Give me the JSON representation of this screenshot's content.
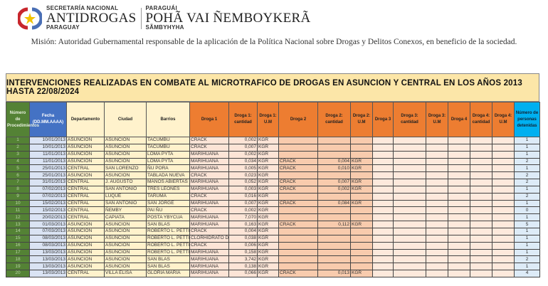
{
  "header": {
    "org_line1": "SECRETARÍA NACIONAL",
    "org_name": "ANTIDROGAS",
    "org_country": "PARAGUAY",
    "gn_line1": "PARAGUÁI",
    "gn_name": "POHÃ VAI ÑEMBOYKERÃ",
    "gn_line3": "SÃMBYHYHA"
  },
  "mision": "Misión: Autoridad Gubernamental responsable de la aplicación de la Política Nacional sobre Drogas y Delitos Conexos, en beneficio de la sociedad.",
  "table": {
    "title": "INTERVENCIONES REALIZADAS EN COMBATE AL MICROTRAFICO DE DROGAS EN ASUNCION Y CENTRAL EN LOS AÑOS 2013 HASTA 22/08/2024",
    "columns": [
      "Número de Procedimientos",
      "Fecha (DD.MM.AAAA)",
      "Departamento",
      "Ciudad",
      "Barrios",
      "Droga 1",
      "Droga 1: cantidad",
      "Droga 1: U.M",
      "Droga 2",
      "Droga 2: cantidad",
      "Droga 2: U.M",
      "Droga 3",
      "Droga 3: cantidad",
      "Droga 3: U.M",
      "Droga 4",
      "Droga 4: cantidad",
      "Droga 4: U.M",
      "Número de personas detenidas"
    ],
    "rows": [
      [
        "1",
        "10/01/2013",
        "ASUNCION",
        "ASUNCION",
        "TACUMBU",
        "CRACK",
        "0,002",
        "KGR",
        "",
        "",
        "",
        "",
        "",
        "",
        "",
        "",
        "",
        "1"
      ],
      [
        "2",
        "10/01/2013",
        "ASUNCION",
        "ASUNCION",
        "TACUMBU",
        "CRACK",
        "0,007",
        "KGR",
        "",
        "",
        "",
        "",
        "",
        "",
        "",
        "",
        "",
        "1"
      ],
      [
        "3",
        "11/01/2013",
        "ASUNCION",
        "ASUNCION",
        "LOMA PYTA",
        "MARIHUANA",
        "0,002",
        "KGR",
        "",
        "",
        "",
        "",
        "",
        "",
        "",
        "",
        "",
        "1"
      ],
      [
        "4",
        "11/01/2013",
        "ASUNCION",
        "ASUNCION",
        "LOMA PYTA",
        "MARIHUANA",
        "0,034",
        "KGR",
        "CRACK",
        "0,004",
        "KGR",
        "",
        "",
        "",
        "",
        "",
        "",
        "2"
      ],
      [
        "5",
        "25/01/2013",
        "CENTRAL",
        "SAN LORENZO",
        "ÑU PORA",
        "MARIHUANA",
        "0,005",
        "KGR",
        "CRACK",
        "0,010",
        "KGR",
        "",
        "",
        "",
        "",
        "",
        "",
        "1"
      ],
      [
        "6",
        "25/01/2013",
        "ASUNCION",
        "ASUNCION",
        "TABLADA NUEVA",
        "CRACK",
        "0,023",
        "KGR",
        "",
        "",
        "",
        "",
        "",
        "",
        "",
        "",
        "",
        "2"
      ],
      [
        "7",
        "31/01/2013",
        "CENTRAL",
        "J. AUGUSTO",
        "MANOS ABIERTAS",
        "MARIHUANA",
        "0,052",
        "KGR",
        "CRACK",
        "0,007",
        "KGR",
        "",
        "",
        "",
        "",
        "",
        "",
        "2"
      ],
      [
        "8",
        "07/02/2013",
        "CENTRAL",
        "SAN ANTONIO",
        "TRES LEONES",
        "MARIHUANA",
        "0,003",
        "KGR",
        "CRACK",
        "0,002",
        "KGR",
        "",
        "",
        "",
        "",
        "",
        "",
        "1"
      ],
      [
        "9",
        "07/02/2013",
        "CENTRAL",
        "LUQUE",
        "TARUMA",
        "CRACK",
        "0,016",
        "KGR",
        "",
        "",
        "",
        "",
        "",
        "",
        "",
        "",
        "",
        "2"
      ],
      [
        "10",
        "15/02/2013",
        "CENTRAL",
        "SAN ANTONIO",
        "SAN JORGE",
        "MARIHUANA",
        "0,007",
        "KGR",
        "CRACK",
        "0,084",
        "KGR",
        "",
        "",
        "",
        "",
        "",
        "",
        "1"
      ],
      [
        "11",
        "15/02/2013",
        "CENTRAL",
        "ÑEMBY",
        "PAI ÑU",
        "CRACK",
        "0,002",
        "KGR",
        "",
        "",
        "",
        "",
        "",
        "",
        "",
        "",
        "",
        "0"
      ],
      [
        "12",
        "20/02/2013",
        "CENTRAL",
        "CAPIATA",
        "POSTA YBYCUA",
        "MARIHUANA",
        "7,070",
        "KGR",
        "",
        "",
        "",
        "",
        "",
        "",
        "",
        "",
        "",
        "1"
      ],
      [
        "13",
        "01/03/2013",
        "ASUNCION",
        "ASUNCION",
        "SAN BLAS",
        "MARIHUANA",
        "0,163",
        "KGR",
        "CRACK",
        "0,112",
        "KGR",
        "",
        "",
        "",
        "",
        "",
        "",
        "5"
      ],
      [
        "14",
        "07/03/2013",
        "ASUNCION",
        "ASUNCION",
        "ROBERTO L. PETTIT",
        "CRACK",
        "0,004",
        "KGR",
        "",
        "",
        "",
        "",
        "",
        "",
        "",
        "",
        "",
        "1"
      ],
      [
        "15",
        "08/03/2013",
        "ASUNCION",
        "ASUNCION",
        "ROBERTO L. PETTIT",
        "CLORHIDRATO DE",
        "0,038",
        "KGR",
        "",
        "",
        "",
        "",
        "",
        "",
        "",
        "",
        "",
        "1"
      ],
      [
        "16",
        "08/03/2013",
        "ASUNCION",
        "ASUNCION",
        "ROBERTO L. PETTIT",
        "CRACK",
        "0,006",
        "KGR",
        "",
        "",
        "",
        "",
        "",
        "",
        "",
        "",
        "",
        "1"
      ],
      [
        "17",
        "13/03/2013",
        "ASUNCION",
        "ASUNCION",
        "ROBERTO L. PETTIT",
        "MARIHUANA",
        "0,158",
        "KGR",
        "",
        "",
        "",
        "",
        "",
        "",
        "",
        "",
        "",
        "1"
      ],
      [
        "18",
        "13/03/2013",
        "ASUNCION",
        "ASUNCION",
        "SAN BLAS",
        "MARIHUANA",
        "3,742",
        "KGR",
        "",
        "",
        "",
        "",
        "",
        "",
        "",
        "",
        "",
        "2"
      ],
      [
        "19",
        "13/03/2013",
        "ASUNCION",
        "ASUNCION",
        "SAN BLAS",
        "MARIHUANA",
        "0,138",
        "KGR",
        "",
        "",
        "",
        "",
        "",
        "",
        "",
        "",
        "",
        "1"
      ],
      [
        "20",
        "13/03/2013",
        "CENTRAL",
        "VILLA ELISA",
        "GLORIA MARIA",
        "MARIHUANA",
        "0,066",
        "KGR",
        "CRACK",
        "0,013",
        "KGR",
        "",
        "",
        "",
        "",
        "",
        "",
        "4"
      ]
    ]
  },
  "colors": {
    "num": "#548235",
    "fecha": "#4472c4",
    "droga": "#ed7d31",
    "personas": "#00b0f0",
    "title_band": "#fce6a8"
  }
}
